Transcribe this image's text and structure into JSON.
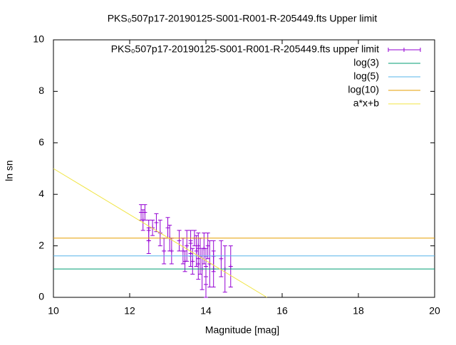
{
  "chart_data": {
    "type": "scatter",
    "title": "PKS₀507p17-20190125-S001-R001-R-205449.fts Upper limit",
    "xlabel": "Magnitude [mag]",
    "ylabel": "ln sn",
    "xlim": [
      10,
      20
    ],
    "ylim": [
      0,
      10
    ],
    "xticks": [
      10,
      12,
      14,
      16,
      18,
      20
    ],
    "yticks": [
      0,
      2,
      4,
      6,
      8,
      10
    ],
    "legend": "top-right",
    "series": [
      {
        "name": "PKS₀507p17-20190125-S001-R001-R-205449.fts upper limit",
        "style": "errorbars",
        "color": "#9400d3",
        "x": [
          12.3,
          12.35,
          12.4,
          12.5,
          12.5,
          12.6,
          12.7,
          12.8,
          12.9,
          13.0,
          13.05,
          13.1,
          13.3,
          13.4,
          13.45,
          13.5,
          13.6,
          13.6,
          13.65,
          13.7,
          13.75,
          13.8,
          13.8,
          13.85,
          13.9,
          13.95,
          14.0,
          14.0,
          14.05,
          14.1,
          14.2,
          14.2,
          14.4,
          14.5,
          14.65
        ],
        "values": [
          3.3,
          3.0,
          3.3,
          2.6,
          2.2,
          2.7,
          2.9,
          2.5,
          1.8,
          2.7,
          2.3,
          1.8,
          2.2,
          1.8,
          1.4,
          2.0,
          1.7,
          2.1,
          1.4,
          2.3,
          1.8,
          1.3,
          2.0,
          1.6,
          1.1,
          1.9,
          1.2,
          0.8,
          2.0,
          1.3,
          1.6,
          1.1,
          1.5,
          1.1,
          1.2
        ],
        "errors": [
          0.3,
          0.4,
          0.3,
          0.4,
          0.5,
          0.3,
          0.35,
          0.5,
          0.5,
          0.4,
          0.5,
          0.5,
          0.4,
          0.5,
          0.4,
          0.6,
          0.5,
          0.5,
          0.5,
          0.3,
          0.6,
          0.6,
          0.5,
          0.7,
          0.8,
          0.6,
          0.7,
          0.8,
          0.5,
          0.9,
          0.6,
          0.7,
          0.7,
          0.9,
          0.8
        ]
      },
      {
        "name": "log(3)",
        "style": "line",
        "color": "#009e73",
        "x": [
          10,
          20
        ],
        "values": [
          1.1,
          1.1
        ]
      },
      {
        "name": "log(5)",
        "style": "line",
        "color": "#56b4e9",
        "x": [
          10,
          20
        ],
        "values": [
          1.61,
          1.61
        ]
      },
      {
        "name": "log(10)",
        "style": "line",
        "color": "#e69f00",
        "x": [
          10,
          20
        ],
        "values": [
          2.3,
          2.3
        ]
      },
      {
        "name": "a*x+b",
        "style": "line",
        "color": "#f0e442",
        "x": [
          10,
          15.6
        ],
        "values": [
          5.0,
          0.0
        ]
      }
    ]
  }
}
